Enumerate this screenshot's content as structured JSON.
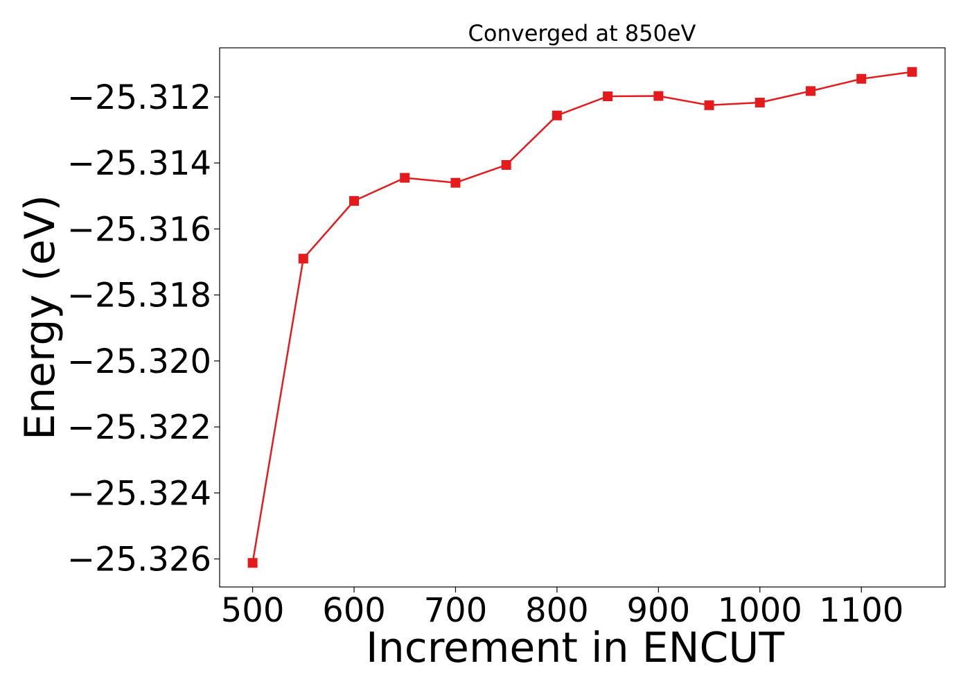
{
  "chart_data": {
    "type": "line",
    "title": "Converged at 850eV",
    "xlabel": "Increment in ENCUT",
    "ylabel": "Energy (eV)",
    "x": [
      500,
      550,
      600,
      650,
      700,
      750,
      800,
      850,
      900,
      950,
      1000,
      1050,
      1100,
      1150
    ],
    "series": [
      {
        "values": [
          -25.32612,
          -25.3169,
          -25.31515,
          -25.31445,
          -25.3146,
          -25.31406,
          -25.31256,
          -25.31198,
          -25.31197,
          -25.31225,
          -25.31217,
          -25.31182,
          -25.31145,
          -25.31124
        ],
        "color": "#e41a1c",
        "marker": "square"
      }
    ],
    "xlim": [
      467.5,
      1182.5
    ],
    "ylim": [
      -25.32685,
      -25.31051
    ],
    "xticks": [
      500,
      600,
      700,
      800,
      900,
      1000,
      1100
    ],
    "xtick_labels": [
      "500",
      "600",
      "700",
      "800",
      "900",
      "1000",
      "1100"
    ],
    "yticks": [
      -25.312,
      -25.314,
      -25.316,
      -25.318,
      -25.32,
      -25.322,
      -25.324,
      -25.326
    ],
    "ytick_labels": [
      "−25.312",
      "−25.314",
      "−25.316",
      "−25.318",
      "−25.320",
      "−25.322",
      "−25.324",
      "−25.326"
    ],
    "grid": false,
    "legend": "none"
  }
}
